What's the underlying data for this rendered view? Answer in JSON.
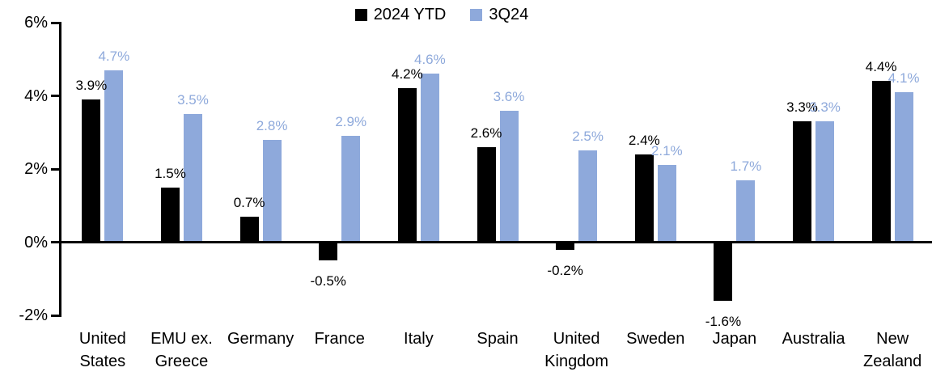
{
  "chart_data": {
    "type": "bar",
    "title": "",
    "xlabel": "",
    "ylabel": "",
    "value_suffix": "%",
    "categories": [
      "United States",
      "EMU ex. Greece",
      "Germany",
      "France",
      "Italy",
      "Spain",
      "United Kingdom",
      "Sweden",
      "Japan",
      "Australia",
      "New Zealand"
    ],
    "series": [
      {
        "name": "2024 YTD",
        "color": "#000000",
        "label_color": "#000000",
        "values": [
          3.9,
          1.5,
          0.7,
          -0.5,
          4.2,
          2.6,
          -0.2,
          2.4,
          -1.6,
          3.3,
          4.4
        ]
      },
      {
        "name": "3Q24",
        "color": "#8EA9DB",
        "label_color": "#8EA9DB",
        "values": [
          4.7,
          3.5,
          2.8,
          2.9,
          4.6,
          3.6,
          2.5,
          2.1,
          1.7,
          3.3,
          4.1
        ]
      }
    ],
    "data_labels": [
      [
        "3.9%",
        "1.5%",
        "0.7%",
        "-0.5%",
        "4.2%",
        "2.6%",
        "-0.2%",
        "2.4%",
        "-1.6%",
        "3.3%",
        "4.4%"
      ],
      [
        "4.7%",
        "3.5%",
        "2.8%",
        "2.9%",
        "4.6%",
        "3.6%",
        "2.5%",
        "2.1%",
        "1.7%",
        "3.3%",
        "4.1%"
      ]
    ],
    "y_ticks": [
      {
        "label": "6%",
        "value": 6
      },
      {
        "label": "4%",
        "value": 4
      },
      {
        "label": "2%",
        "value": 2
      },
      {
        "label": "0%",
        "value": 0
      },
      {
        "label": "-2%",
        "value": -2
      }
    ],
    "ylim": [
      -2,
      6
    ],
    "grid": false,
    "legend_position": "top-center"
  }
}
